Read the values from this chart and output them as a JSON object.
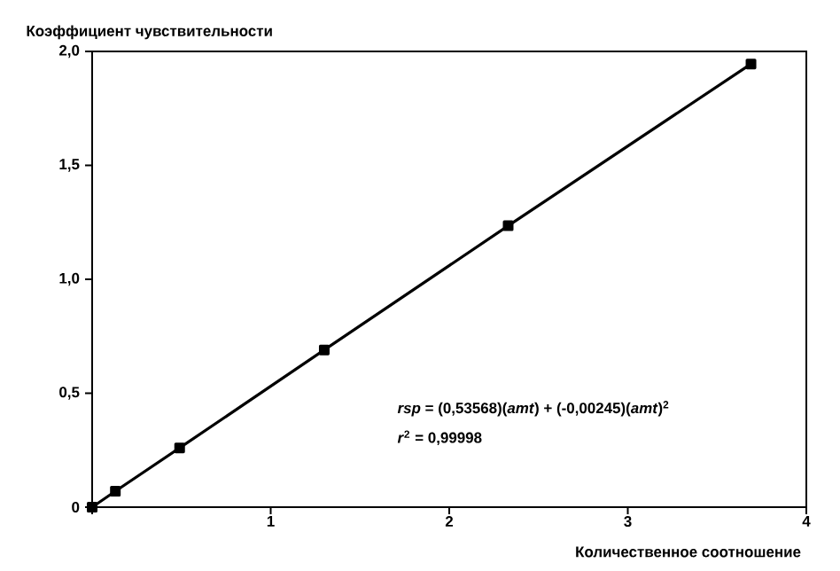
{
  "chart_data": {
    "type": "line",
    "xlabel": "Количественное соотношение",
    "ylabel": "Коэффициент чувствительности",
    "x": [
      0,
      0.13,
      0.49,
      1.3,
      2.33,
      3.69
    ],
    "series": [
      {
        "color": "#000000",
        "values": [
          0,
          0.07,
          0.26,
          0.69,
          1.235,
          1.945
        ]
      }
    ],
    "marker": "square",
    "line_style": "solid",
    "xlim": [
      0,
      4
    ],
    "ylim": [
      0,
      2
    ],
    "xticks": [
      {
        "value": 0,
        "label": null
      },
      1,
      2,
      3,
      4
    ],
    "yticks": [
      0,
      {
        "value": 0.5,
        "label": "0,5"
      },
      {
        "value": 1,
        "label": "1,0"
      },
      {
        "value": 1.5,
        "label": "1,5"
      },
      {
        "value": 2,
        "label": "2,0"
      }
    ],
    "annotations": [
      "*rsp* = (0,53568)(*amt*) + (-0,00245)(*amt*)$^{2}$",
      "*r*$^{2}$ = 0,99998"
    ]
  }
}
